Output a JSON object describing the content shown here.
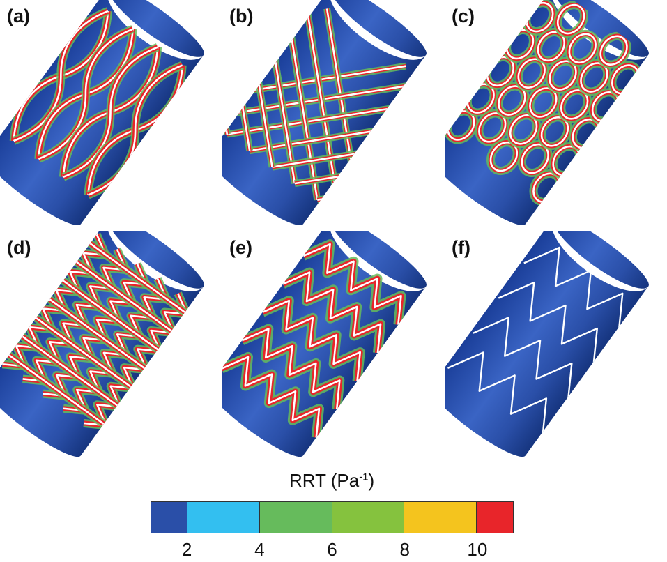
{
  "panels": [
    {
      "label": "(a)",
      "pattern": "closed-cell-wide"
    },
    {
      "label": "(b)",
      "pattern": "diamond-mesh"
    },
    {
      "label": "(c)",
      "pattern": "interlocked-rings"
    },
    {
      "label": "(d)",
      "pattern": "closed-cell-narrow"
    },
    {
      "label": "(e)",
      "pattern": "chevron-wave"
    },
    {
      "label": "(f)",
      "pattern": "open-zigzag"
    }
  ],
  "legend": {
    "title": "RRT (Pa",
    "title_sup": "-1",
    "title_close": ")",
    "segments": [
      {
        "color": "#2a4fa8"
      },
      {
        "color": "#33bff0"
      },
      {
        "color": "#66bb5c"
      },
      {
        "color": "#85c23e"
      },
      {
        "color": "#f4c41e"
      },
      {
        "color": "#e8252a"
      }
    ],
    "range": [
      1,
      11
    ],
    "boundaries": [
      2,
      4,
      6,
      8,
      10
    ],
    "tick_labels": [
      "2",
      "4",
      "6",
      "8",
      "10"
    ]
  }
}
